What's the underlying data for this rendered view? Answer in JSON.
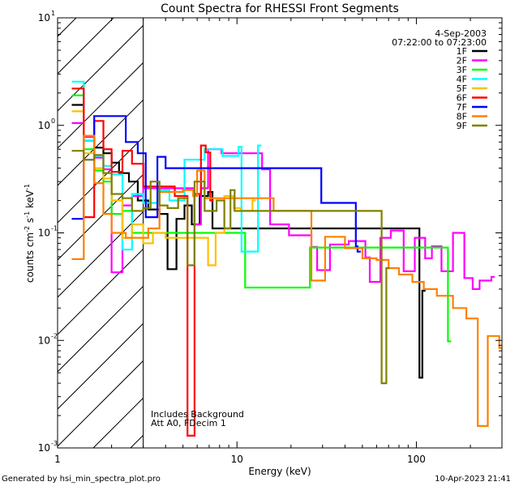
{
  "chart_data": {
    "type": "line",
    "title": "Count Spectra for RHESSI Front Segments",
    "xlabel": "Energy (keV)",
    "ylabel_base": "counts cm",
    "ylabel_exp1": "-2",
    "ylabel_mid": " s",
    "ylabel_exp2": "-1",
    "ylabel_end": " keV",
    "ylabel_exp3": "-1",
    "x_scale": "log",
    "y_scale": "log",
    "xlim": [
      1,
      300
    ],
    "ylim": [
      0.001,
      10
    ],
    "x_ticks": [
      {
        "value": 1,
        "label": "1"
      },
      {
        "value": 10,
        "label": "10"
      },
      {
        "value": 100,
        "label": "100"
      }
    ],
    "y_ticks": [
      {
        "value": 0.001,
        "base": "10",
        "exp": "-3"
      },
      {
        "value": 0.01,
        "base": "10",
        "exp": "-2"
      },
      {
        "value": 0.1,
        "base": "10",
        "exp": "-1"
      },
      {
        "value": 1,
        "base": "10",
        "exp": "0"
      },
      {
        "value": 10,
        "base": "10",
        "exp": "1"
      }
    ],
    "hatched_region_energy": [
      1,
      3
    ],
    "date": "4-Sep-2003",
    "time_range": "07:22:00 to 07:23:00",
    "annotation_line1": "Includes Background",
    "annotation_line2": "Att A0, FDecim 1",
    "legend_position": "top-right",
    "series": [
      {
        "name": "1F",
        "color": "#000000",
        "points": [
          [
            1.2,
            1.55
          ],
          [
            1.4,
            0.72
          ],
          [
            1.6,
            0.62
          ],
          [
            1.8,
            0.55
          ],
          [
            2.0,
            0.45
          ],
          [
            2.2,
            0.36
          ],
          [
            2.5,
            0.3
          ],
          [
            2.8,
            0.2
          ],
          [
            3.2,
            0.165
          ],
          [
            3.7,
            0.15
          ],
          [
            4.1,
            0.046
          ],
          [
            4.6,
            0.135
          ],
          [
            5.1,
            0.18
          ],
          [
            5.6,
            0.12
          ],
          [
            6.2,
            0.22
          ],
          [
            6.9,
            0.24
          ],
          [
            7.3,
            0.11
          ],
          [
            104,
            0.0045
          ],
          [
            108,
            0.029
          ]
        ]
      },
      {
        "name": "2F",
        "color": "#ff00ff",
        "points": [
          [
            1.2,
            1.05
          ],
          [
            1.4,
            0.78
          ],
          [
            1.6,
            0.5
          ],
          [
            1.8,
            0.39
          ],
          [
            2.0,
            0.043
          ],
          [
            2.3,
            0.18
          ],
          [
            2.6,
            0.22
          ],
          [
            3.0,
            0.26
          ],
          [
            5.8,
            0.12
          ],
          [
            6.3,
            0.26
          ],
          [
            6.9,
            0.6
          ],
          [
            8.2,
            0.55
          ],
          [
            13.8,
            0.39
          ],
          [
            15.3,
            0.12
          ],
          [
            19.5,
            0.095
          ],
          [
            26,
            0.074
          ],
          [
            28,
            0.045
          ],
          [
            33,
            0.078
          ],
          [
            42,
            0.084
          ],
          [
            52,
            0.059
          ],
          [
            55,
            0.035
          ],
          [
            63,
            0.09
          ],
          [
            72,
            0.105
          ],
          [
            85,
            0.044
          ],
          [
            98,
            0.09
          ],
          [
            112,
            0.058
          ],
          [
            122,
            0.075
          ],
          [
            138,
            0.044
          ],
          [
            160,
            0.1
          ],
          [
            185,
            0.038
          ],
          [
            206,
            0.03
          ],
          [
            225,
            0.036
          ],
          [
            262,
            0.039
          ]
        ]
      },
      {
        "name": "3F",
        "color": "#00ff00",
        "points": [
          [
            1.2,
            1.9
          ],
          [
            1.4,
            0.6
          ],
          [
            1.6,
            0.38
          ],
          [
            1.8,
            0.3
          ],
          [
            2.0,
            0.15
          ],
          [
            2.3,
            0.16
          ],
          [
            2.6,
            0.1
          ],
          [
            11.1,
            0.031
          ],
          [
            25.5,
            0.073
          ],
          [
            150,
            0.0098
          ]
        ]
      },
      {
        "name": "4F",
        "color": "#00ffff",
        "points": [
          [
            1.2,
            2.55
          ],
          [
            1.4,
            0.72
          ],
          [
            1.6,
            0.52
          ],
          [
            1.8,
            0.42
          ],
          [
            2.0,
            0.35
          ],
          [
            2.3,
            0.07
          ],
          [
            2.6,
            0.23
          ],
          [
            3.0,
            0.19
          ],
          [
            3.6,
            0.25
          ],
          [
            4.2,
            0.2
          ],
          [
            5.1,
            0.48
          ],
          [
            6.6,
            0.6
          ],
          [
            8.3,
            0.52
          ],
          [
            10.2,
            0.63
          ],
          [
            10.6,
            0.067
          ],
          [
            13.1,
            0.65
          ]
        ]
      },
      {
        "name": "5F",
        "color": "#ffbf00",
        "points": [
          [
            1.2,
            1.35
          ],
          [
            1.4,
            0.55
          ],
          [
            1.6,
            0.4
          ],
          [
            1.8,
            0.32
          ],
          [
            2.0,
            0.2
          ],
          [
            2.3,
            0.09
          ],
          [
            2.6,
            0.12
          ],
          [
            3.0,
            0.08
          ],
          [
            3.4,
            0.1
          ],
          [
            4.0,
            0.09
          ],
          [
            6.9,
            0.05
          ],
          [
            7.6,
            0.1
          ],
          [
            8.5,
            0.22
          ],
          [
            9.6,
            0.17
          ],
          [
            10.5,
            0.16
          ],
          [
            12.2,
            0.2
          ]
        ]
      },
      {
        "name": "6F",
        "color": "#ff0000",
        "points": [
          [
            1.2,
            2.2
          ],
          [
            1.4,
            0.14
          ],
          [
            1.6,
            1.1
          ],
          [
            1.8,
            0.6
          ],
          [
            2.0,
            0.37
          ],
          [
            2.3,
            0.58
          ],
          [
            2.6,
            0.44
          ],
          [
            3.0,
            0.27
          ],
          [
            4.5,
            0.22
          ],
          [
            5.3,
            0.0013
          ],
          [
            5.8,
            0.23
          ],
          [
            6.3,
            0.65
          ],
          [
            6.7,
            0.56
          ],
          [
            7.1,
            0.2
          ]
        ]
      },
      {
        "name": "7F",
        "color": "#0000ff",
        "points": [
          [
            1.2,
            0.135
          ],
          [
            1.4,
            0.48
          ],
          [
            1.6,
            1.22
          ],
          [
            2.0,
            1.22
          ],
          [
            2.4,
            0.7
          ],
          [
            2.8,
            0.55
          ],
          [
            3.1,
            0.14
          ],
          [
            3.6,
            0.51
          ],
          [
            4.0,
            0.4
          ],
          [
            29.5,
            0.19
          ],
          [
            46,
            0.075
          ],
          [
            47,
            0.067
          ]
        ]
      },
      {
        "name": "8F",
        "color": "#ff8000",
        "points": [
          [
            1.2,
            0.057
          ],
          [
            1.4,
            0.8
          ],
          [
            1.6,
            0.29
          ],
          [
            1.8,
            0.15
          ],
          [
            2.0,
            0.1
          ],
          [
            2.4,
            0.09
          ],
          [
            2.8,
            0.09
          ],
          [
            3.2,
            0.11
          ],
          [
            3.7,
            0.24
          ],
          [
            4.2,
            0.24
          ],
          [
            5.0,
            0.25
          ],
          [
            5.7,
            0.22
          ],
          [
            6.0,
            0.38
          ],
          [
            6.6,
            0.21
          ],
          [
            16,
            0.16
          ],
          [
            26,
            0.036
          ],
          [
            31,
            0.092
          ],
          [
            40,
            0.072
          ],
          [
            50,
            0.058
          ],
          [
            60,
            0.056
          ],
          [
            70,
            0.047
          ],
          [
            80,
            0.041
          ],
          [
            95,
            0.035
          ],
          [
            110,
            0.03
          ],
          [
            130,
            0.026
          ],
          [
            160,
            0.02
          ],
          [
            190,
            0.016
          ],
          [
            220,
            0.0016
          ],
          [
            250,
            0.011
          ],
          [
            290,
            0.0085
          ]
        ]
      },
      {
        "name": "9F",
        "color": "#808000",
        "points": [
          [
            1.2,
            0.58
          ],
          [
            1.4,
            0.48
          ],
          [
            1.6,
            0.53
          ],
          [
            1.8,
            0.36
          ],
          [
            2.0,
            0.23
          ],
          [
            2.3,
            0.21
          ],
          [
            2.6,
            0.16
          ],
          [
            3.0,
            0.17
          ],
          [
            3.3,
            0.3
          ],
          [
            3.7,
            0.18
          ],
          [
            4.1,
            0.17
          ],
          [
            4.7,
            0.21
          ],
          [
            5.3,
            0.05
          ],
          [
            5.8,
            0.3
          ],
          [
            6.6,
            0.16
          ],
          [
            7.7,
            0.2
          ],
          [
            8.5,
            0.11
          ],
          [
            9.2,
            0.25
          ],
          [
            9.7,
            0.16
          ],
          [
            64,
            0.004
          ],
          [
            68,
            0.047
          ]
        ]
      }
    ]
  },
  "footer": {
    "generated_by": "Generated by hsi_min_spectra_plot.pro",
    "timestamp": "10-Apr-2023 21:41"
  }
}
